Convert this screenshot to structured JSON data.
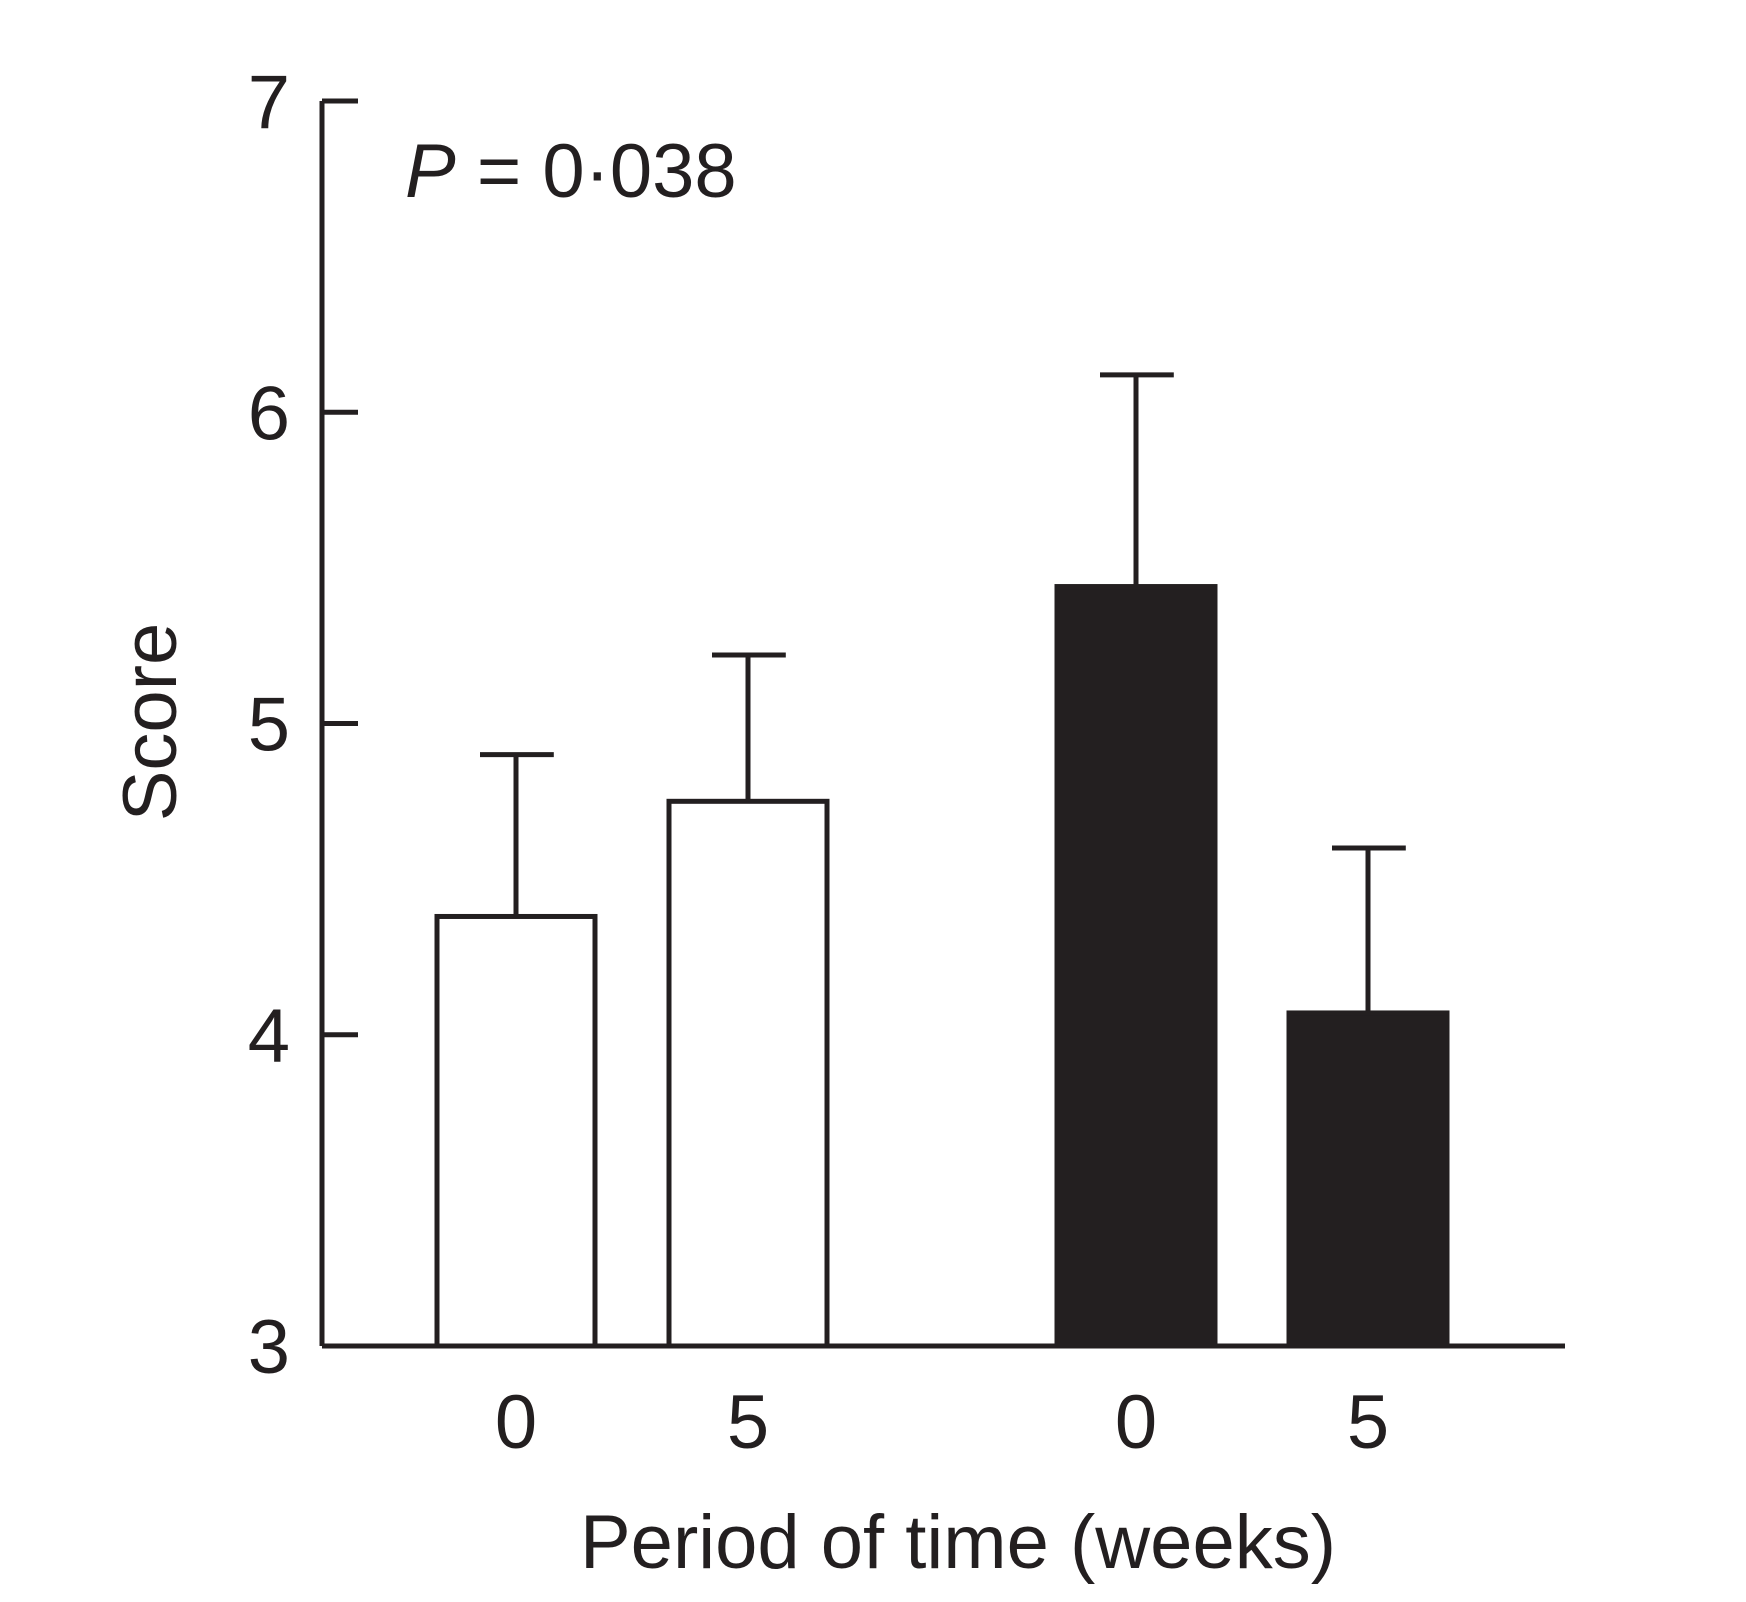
{
  "chart_data": {
    "type": "bar",
    "title": "",
    "xlabel": "Period of time (weeks)",
    "ylabel": "Score",
    "ylim": [
      3,
      7
    ],
    "yticks": [
      3,
      4,
      5,
      6,
      7
    ],
    "grid": false,
    "annotation": {
      "italic": "P",
      "rest": " = 0·038"
    },
    "bars": [
      {
        "category": "0",
        "value": 4.38,
        "error_upper": 4.9,
        "fill": "#ffffff"
      },
      {
        "category": "5",
        "value": 4.75,
        "error_upper": 5.22,
        "fill": "#ffffff"
      },
      {
        "category": "0",
        "value": 5.44,
        "error_upper": 6.12,
        "fill": "#231f20"
      },
      {
        "category": "5",
        "value": 4.07,
        "error_upper": 4.6,
        "fill": "#231f20"
      }
    ],
    "colors": {
      "axis": "#231f20",
      "open_bar": "#ffffff",
      "filled_bar": "#231f20"
    }
  }
}
